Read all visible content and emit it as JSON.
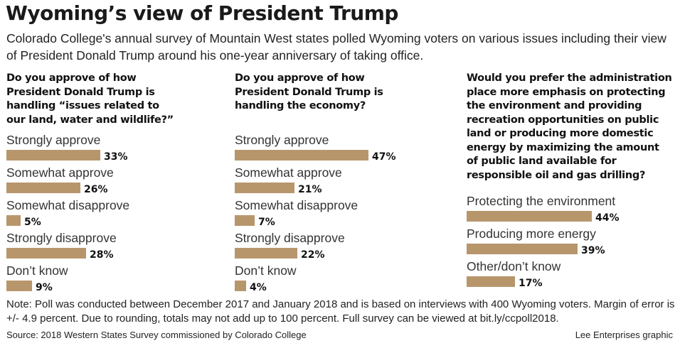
{
  "header": {
    "title": "Wyoming’s view of President Trump",
    "intro": "Colorado College's annual survey of Mountain West states polled Wyoming voters on various issues including their view of President Donald Trump around his one-year anniversary of taking office."
  },
  "colors": {
    "bar": "#b8966c",
    "text": "#111111"
  },
  "chart_data": [
    {
      "type": "bar",
      "orientation": "horizontal",
      "title": "Do you approve of how President Donald Trump is handling “issues related to our land, water and wildlife?”",
      "categories": [
        "Strongly approve",
        "Somewhat approve",
        "Somewhat disapprove",
        "Strongly disapprove",
        "Don’t know"
      ],
      "values": [
        33,
        26,
        5,
        28,
        9
      ],
      "value_labels": [
        "33%",
        "26%",
        "5%",
        "28%",
        "9%"
      ],
      "unit": "%"
    },
    {
      "type": "bar",
      "orientation": "horizontal",
      "title": "Do you approve of how President Donald Trump is handling the economy?",
      "categories": [
        "Strongly approve",
        "Somewhat approve",
        "Somewhat disapprove",
        "Strongly disapprove",
        "Don’t know"
      ],
      "values": [
        47,
        21,
        7,
        22,
        4
      ],
      "value_labels": [
        "47%",
        "21%",
        "7%",
        "22%",
        "4%"
      ],
      "unit": "%"
    },
    {
      "type": "bar",
      "orientation": "horizontal",
      "title": "Would you prefer the administration place more emphasis on protecting the environment and providing recreation opportunities on public land or producing more domestic energy by maximizing the amount of public land available for responsible oil and gas drilling?",
      "categories": [
        "Protecting the environment",
        "Producing more energy",
        "Other/don’t know"
      ],
      "values": [
        44,
        39,
        17
      ],
      "value_labels": [
        "44%",
        "39%",
        "17%"
      ],
      "unit": "%"
    }
  ],
  "footer": {
    "note": "Note: Poll was conducted between December 2017 and January 2018 and is based on interviews with 400 Wyoming voters. Margin of error is +/- 4.9 percent. Due to rounding, totals may not add up to 100 percent. Full survey can be viewed at bit.ly/ccpoll2018.",
    "source": "Source: 2018 Western States Survey commissioned by Colorado College",
    "credit": "Lee Enterprises graphic"
  }
}
